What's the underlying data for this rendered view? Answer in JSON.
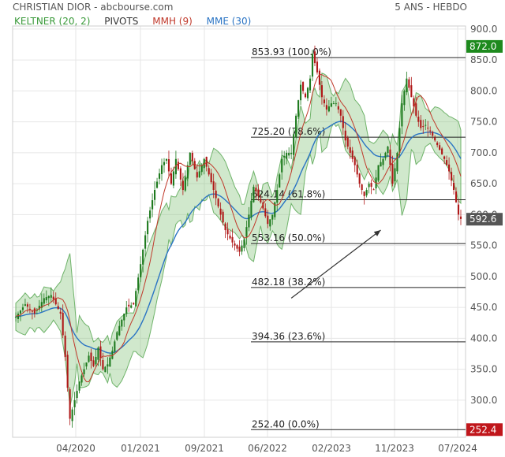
{
  "header": {
    "title": "CHRISTIAN DIOR - abcbourse.com",
    "period": "5 ANS - HEBDO"
  },
  "legend": [
    {
      "label": "KELTNER (20, 2)",
      "color": "#3a9a3a"
    },
    {
      "label": "PIVOTS",
      "color": "#333333"
    },
    {
      "label": "MMH (9)",
      "color": "#c0392b"
    },
    {
      "label": "MME (30)",
      "color": "#2a74c4"
    }
  ],
  "chart_data": {
    "type": "candlestick",
    "ylim": [
      240,
      905
    ],
    "y_ticks": [
      300,
      350,
      400,
      450,
      500,
      550,
      600,
      650,
      700,
      750,
      800,
      850,
      900
    ],
    "x_ticks": [
      "04/2020",
      "01/2021",
      "09/2021",
      "06/2022",
      "02/2023",
      "11/2023",
      "07/2024"
    ],
    "fibonacci_levels": [
      {
        "value": 853.93,
        "label": "853.93  (100.0%)"
      },
      {
        "value": 725.2,
        "label": "725.20  (78.6%)"
      },
      {
        "value": 624.14,
        "label": "624.14  (61.8%)"
      },
      {
        "value": 553.16,
        "label": "553.16  (50.0%)"
      },
      {
        "value": 482.18,
        "label": "482.18  (38.2%)"
      },
      {
        "value": 394.36,
        "label": "394.36  (23.6%)"
      },
      {
        "value": 252.4,
        "label": "252.40  (0.0%)"
      }
    ],
    "badges": [
      {
        "value": 872.0,
        "label": "872.0",
        "color": "#1e8a1e"
      },
      {
        "value": 592.6,
        "label": "592.6",
        "color": "#555555"
      },
      {
        "value": 252.4,
        "label": "252.4",
        "color": "#c0161b"
      }
    ],
    "price_path": [
      [
        0,
        435
      ],
      [
        4,
        455
      ],
      [
        8,
        440
      ],
      [
        12,
        465
      ],
      [
        15,
        470
      ],
      [
        17,
        455
      ],
      [
        19,
        440
      ],
      [
        21,
        370
      ],
      [
        23,
        270
      ],
      [
        25,
        300
      ],
      [
        27,
        330
      ],
      [
        29,
        350
      ],
      [
        31,
        372
      ],
      [
        33,
        355
      ],
      [
        35,
        385
      ],
      [
        37,
        350
      ],
      [
        39,
        358
      ],
      [
        41,
        380
      ],
      [
        43,
        410
      ],
      [
        45,
        430
      ],
      [
        47,
        450
      ],
      [
        50,
        455
      ],
      [
        53,
        520
      ],
      [
        56,
        590
      ],
      [
        59,
        640
      ],
      [
        62,
        680
      ],
      [
        64,
        690
      ],
      [
        66,
        650
      ],
      [
        68,
        690
      ],
      [
        71,
        640
      ],
      [
        74,
        700
      ],
      [
        77,
        660
      ],
      [
        80,
        690
      ],
      [
        82,
        665
      ],
      [
        84,
        640
      ],
      [
        87,
        600
      ],
      [
        89,
        575
      ],
      [
        92,
        555
      ],
      [
        95,
        540
      ],
      [
        97,
        560
      ],
      [
        99,
        600
      ],
      [
        101,
        645
      ],
      [
        103,
        630
      ],
      [
        105,
        610
      ],
      [
        107,
        585
      ],
      [
        109,
        600
      ],
      [
        111,
        640
      ],
      [
        113,
        690
      ],
      [
        115,
        700
      ],
      [
        117,
        700
      ],
      [
        119,
        760
      ],
      [
        121,
        810
      ],
      [
        123,
        790
      ],
      [
        125,
        820
      ],
      [
        126,
        860
      ],
      [
        128,
        830
      ],
      [
        130,
        790
      ],
      [
        132,
        770
      ],
      [
        134,
        780
      ],
      [
        136,
        780
      ],
      [
        138,
        760
      ],
      [
        140,
        720
      ],
      [
        142,
        700
      ],
      [
        144,
        680
      ],
      [
        146,
        650
      ],
      [
        148,
        630
      ],
      [
        150,
        650
      ],
      [
        152,
        640
      ],
      [
        154,
        680
      ],
      [
        156,
        690
      ],
      [
        158,
        710
      ],
      [
        160,
        650
      ],
      [
        162,
        700
      ],
      [
        164,
        780
      ],
      [
        166,
        820
      ],
      [
        168,
        790
      ],
      [
        170,
        760
      ],
      [
        172,
        740
      ],
      [
        174,
        745
      ],
      [
        176,
        735
      ],
      [
        178,
        720
      ],
      [
        180,
        705
      ],
      [
        182,
        690
      ],
      [
        184,
        670
      ],
      [
        186,
        640
      ],
      [
        188,
        600
      ],
      [
        189,
        593
      ]
    ],
    "arrow": {
      "from": [
        117,
        465
      ],
      "to": [
        155,
        575
      ]
    }
  }
}
